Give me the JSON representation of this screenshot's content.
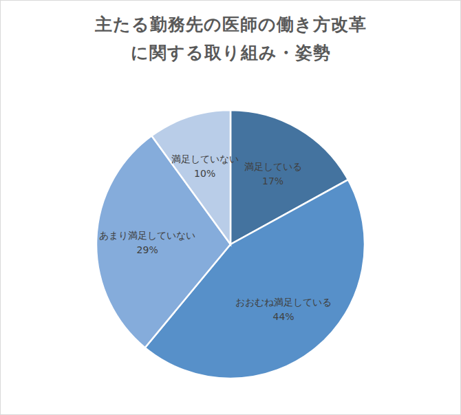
{
  "chart_data": {
    "type": "pie",
    "title": "主たる勤務先の医師の働き方改革\nに関する取り組み・姿勢",
    "categories": [
      "満足している",
      "おおむね満足している",
      "あまり満足していない",
      "満足していない"
    ],
    "values": [
      17,
      44,
      29,
      10
    ],
    "value_labels": [
      "17%",
      "44%",
      "29%",
      "10%"
    ],
    "colors": [
      "#44739f",
      "#5790c9",
      "#85acdb",
      "#b9cde8"
    ],
    "data_labels": true
  }
}
